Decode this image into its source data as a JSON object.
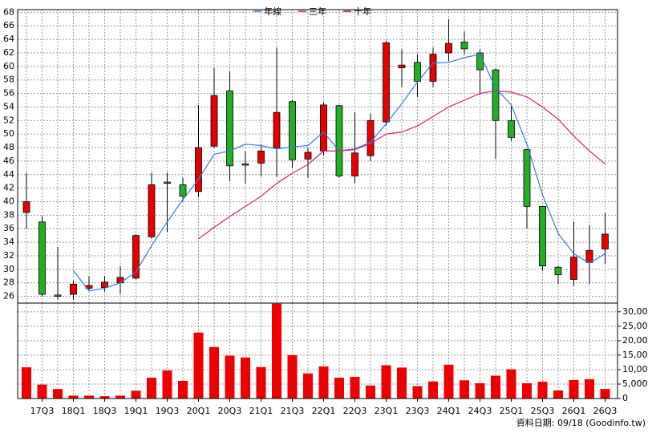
{
  "chart_data": [
    {
      "type": "candlestick",
      "open": [
        38.4,
        37,
        26.2,
        26.3,
        27.2,
        27.3,
        28,
        28.7,
        34.8,
        42.9,
        42.5,
        41.5,
        48.2,
        56.4,
        45.6,
        45.7,
        48,
        54.8,
        46.3,
        47.5,
        54.2,
        43.8,
        46.8,
        51.8,
        59.8,
        60.6,
        57.8,
        62,
        63.6,
        62,
        59.5,
        52,
        47.7,
        39.3,
        30.3,
        28.5,
        31,
        33
      ],
      "high": [
        44.3,
        37.8,
        33.3,
        28.3,
        29,
        29,
        30.5,
        35.2,
        44.3,
        44.3,
        43.5,
        54.3,
        59.8,
        59.3,
        47.5,
        48.5,
        62.8,
        55,
        48,
        54.7,
        54.3,
        53.2,
        53,
        63.8,
        62.5,
        61.8,
        62.8,
        67,
        65.2,
        62.5,
        59.7,
        54.3,
        47.8,
        39.3,
        30.5,
        37,
        36.5,
        38.3
      ],
      "low": [
        36,
        26,
        25.5,
        25.5,
        26.8,
        26.7,
        26.3,
        28.5,
        34.5,
        35.5,
        40,
        40.7,
        48,
        43,
        42.7,
        43.8,
        43.7,
        45,
        43.5,
        46.8,
        43.5,
        42.8,
        46,
        51.3,
        57,
        55.5,
        57,
        60.8,
        61.8,
        55.8,
        46.3,
        49,
        36,
        29.8,
        27.8,
        27.6,
        27.8,
        30.8
      ],
      "close": [
        40,
        26.3,
        26,
        27.8,
        27.6,
        28.1,
        28.8,
        35,
        42.5,
        42.7,
        40.8,
        48,
        55.7,
        45.3,
        45.4,
        47.5,
        53.2,
        46.2,
        47.3,
        54.3,
        43.8,
        47.2,
        52,
        63.5,
        60.2,
        57.8,
        61.8,
        63.4,
        62.6,
        59.5,
        52,
        49.5,
        39.3,
        30.5,
        29.2,
        31.8,
        32.8,
        35.2
      ],
      "up_color": "#e60000",
      "down_color": "#22b022",
      "series": [
        {
          "name": "年線",
          "color": "#2f7fd8",
          "values": [
            null,
            null,
            null,
            29.8,
            26.8,
            27.2,
            28,
            29.6,
            33.5,
            37,
            40.3,
            43.3,
            47,
            47.5,
            48.5,
            48.3,
            47.8,
            48.1,
            48.3,
            50.3,
            47.5,
            47.8,
            48.8,
            51.5,
            54.5,
            57.7,
            60.5,
            60.6,
            61.3,
            61.8,
            56.8,
            54.3,
            48.5,
            41,
            35.3,
            32.3,
            30.9,
            32.3
          ]
        },
        {
          "name": "三年",
          "color": "#d0207a",
          "values": [
            null,
            null,
            null,
            null,
            null,
            null,
            null,
            null,
            null,
            null,
            null,
            34.5,
            36.2,
            37.8,
            39.3,
            40.8,
            42.7,
            44.2,
            45.5,
            47.5,
            47.5,
            47.7,
            48.6,
            50,
            50.3,
            51.2,
            52.6,
            54,
            55,
            56,
            56.4,
            56.2,
            55.5,
            54,
            52.2,
            49.7,
            47.5,
            45.6
          ]
        },
        {
          "name": "十年",
          "color": "#9c1040",
          "values": [
            null,
            null,
            null,
            null,
            null,
            null,
            null,
            null,
            null,
            null,
            null,
            null,
            null,
            null,
            null,
            null,
            null,
            null,
            null,
            null,
            null,
            null,
            null,
            null,
            null,
            null,
            null,
            null,
            null,
            null,
            null,
            null,
            null,
            null,
            null,
            null,
            null,
            null
          ]
        }
      ],
      "ylim": [
        25,
        68.4
      ],
      "yticks": [
        26,
        28,
        30,
        32,
        34,
        36,
        38,
        40,
        42,
        44,
        46,
        48,
        50,
        52,
        54,
        56,
        58,
        60,
        62,
        64,
        66,
        68
      ],
      "grid": true
    },
    {
      "type": "bar",
      "categories": [
        null,
        "17Q3",
        null,
        "18Q1",
        null,
        "18Q3",
        null,
        "19Q1",
        null,
        "19Q3",
        null,
        "20Q1",
        null,
        "20Q3",
        null,
        "21Q1",
        null,
        "21Q3",
        null,
        "22Q1",
        null,
        "22Q3",
        null,
        "23Q1",
        null,
        "23Q3",
        null,
        "24Q1",
        null,
        "24Q3",
        null,
        "25Q1",
        null,
        "25Q3",
        null,
        "26Q1",
        null,
        "26Q3"
      ],
      "values": [
        10800,
        4800,
        3300,
        1000,
        1000,
        800,
        1000,
        2700,
        7200,
        9700,
        6100,
        22800,
        17800,
        14800,
        14200,
        10900,
        32800,
        15000,
        8700,
        11100,
        7200,
        7500,
        4500,
        11500,
        10700,
        4300,
        5900,
        11700,
        6300,
        5300,
        7900,
        10100,
        5300,
        5800,
        2800,
        6400,
        6700,
        3300
      ],
      "color": "#ee0000",
      "ylim": [
        0,
        33000
      ],
      "yticks": [
        0,
        {
          "value": 5000,
          "label": "5,000"
        },
        {
          "value": 10000,
          "label": "10,000"
        },
        {
          "value": 15000,
          "label": "15,000"
        },
        {
          "value": 20000,
          "label": "20,000"
        },
        {
          "value": 25000,
          "label": "25,000"
        },
        {
          "value": 30000,
          "label": "30,000"
        }
      ],
      "grid": true,
      "note": "資料日期: 09/18 (Goodinfo.tw)"
    }
  ]
}
